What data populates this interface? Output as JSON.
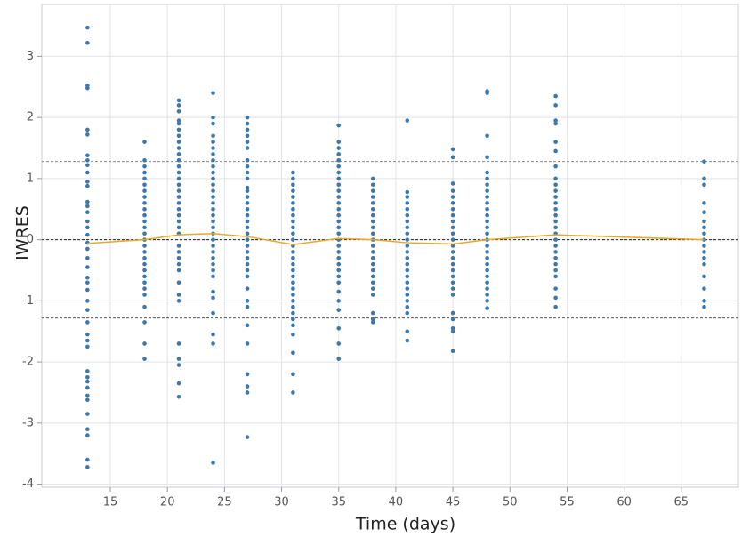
{
  "chart_data": {
    "type": "scatter",
    "xlabel": "Time (days)",
    "ylabel": "IWRES",
    "xlim": [
      9,
      70
    ],
    "ylim": [
      -4.05,
      3.85
    ],
    "xticks": [
      15,
      20,
      25,
      30,
      35,
      40,
      45,
      50,
      55,
      60,
      65
    ],
    "yticks": [
      -4,
      -3,
      -2,
      -1,
      0,
      1,
      2,
      3
    ],
    "grid": true,
    "color": "#3b78ad",
    "groups": [
      {
        "x": 13,
        "values": [
          3.47,
          3.22,
          2.52,
          2.48,
          1.8,
          1.72,
          1.38,
          1.3,
          1.22,
          1.1,
          0.95,
          0.88,
          0.62,
          0.55,
          0.45,
          0.3,
          0.2,
          0.08,
          -0.05,
          -0.15,
          -0.3,
          -0.45,
          -0.62,
          -0.7,
          -0.82,
          -1.0,
          -1.15,
          -1.35,
          -1.55,
          -1.65,
          -1.75,
          -2.15,
          -2.25,
          -2.32,
          -2.42,
          -2.55,
          -2.62,
          -2.85,
          -3.1,
          -3.2,
          -3.6,
          -3.72
        ]
      },
      {
        "x": 18,
        "values": [
          1.6,
          1.3,
          1.2,
          1.1,
          1.0,
          0.9,
          0.8,
          0.7,
          0.6,
          0.5,
          0.4,
          0.3,
          0.2,
          0.1,
          0,
          -0.1,
          -0.2,
          -0.3,
          -0.4,
          -0.5,
          -0.6,
          -0.7,
          -0.8,
          -0.9,
          -1.1,
          -1.35,
          -1.7,
          -1.95
        ]
      },
      {
        "x": 21,
        "values": [
          2.28,
          2.2,
          2.1,
          1.95,
          1.9,
          1.8,
          1.7,
          1.6,
          1.5,
          1.4,
          1.3,
          1.2,
          1.1,
          1.0,
          0.9,
          0.8,
          0.7,
          0.6,
          0.5,
          0.4,
          0.3,
          0.2,
          0.1,
          -0.1,
          -0.2,
          -0.3,
          -0.4,
          -0.5,
          -0.7,
          -0.9,
          -1.0,
          -1.7,
          -1.95,
          -2.05,
          -2.35,
          -2.57
        ]
      },
      {
        "x": 24,
        "values": [
          2.4,
          2.0,
          1.9,
          1.7,
          1.6,
          1.5,
          1.4,
          1.3,
          1.2,
          1.1,
          1.0,
          0.9,
          0.8,
          0.7,
          0.6,
          0.5,
          0.4,
          0.3,
          0.2,
          0.1,
          0,
          -0.1,
          -0.2,
          -0.3,
          -0.4,
          -0.5,
          -0.6,
          -0.85,
          -0.95,
          -1.2,
          -1.55,
          -1.7,
          -3.65
        ]
      },
      {
        "x": 27,
        "values": [
          2.0,
          1.9,
          1.8,
          1.7,
          1.6,
          1.5,
          1.3,
          1.2,
          1.1,
          1.0,
          0.85,
          0.8,
          0.7,
          0.6,
          0.5,
          0.4,
          0.3,
          0.2,
          0.1,
          0,
          -0.1,
          -0.2,
          -0.3,
          -0.4,
          -0.5,
          -0.6,
          -0.8,
          -1.0,
          -1.1,
          -1.4,
          -1.7,
          -2.2,
          -2.4,
          -2.5,
          -3.23
        ]
      },
      {
        "x": 31,
        "values": [
          1.1,
          1.0,
          0.9,
          0.8,
          0.7,
          0.6,
          0.5,
          0.4,
          0.3,
          0.2,
          0.1,
          0,
          -0.1,
          -0.2,
          -0.3,
          -0.4,
          -0.5,
          -0.6,
          -0.7,
          -0.8,
          -0.9,
          -1.0,
          -1.1,
          -1.2,
          -1.3,
          -1.4,
          -1.55,
          -1.85,
          -2.2,
          -2.5
        ]
      },
      {
        "x": 35,
        "values": [
          1.87,
          1.6,
          1.5,
          1.4,
          1.3,
          1.2,
          1.1,
          1.0,
          0.9,
          0.8,
          0.7,
          0.6,
          0.5,
          0.4,
          0.3,
          0.2,
          0.1,
          0,
          -0.1,
          -0.2,
          -0.3,
          -0.4,
          -0.5,
          -0.6,
          -0.7,
          -0.85,
          -1.0,
          -1.15,
          -1.45,
          -1.7,
          -1.95
        ]
      },
      {
        "x": 38,
        "values": [
          1.0,
          0.9,
          0.8,
          0.7,
          0.6,
          0.5,
          0.4,
          0.3,
          0.2,
          0.1,
          0,
          -0.1,
          -0.2,
          -0.3,
          -0.4,
          -0.5,
          -0.6,
          -0.7,
          -0.8,
          -0.9,
          -1.2,
          -1.3,
          -1.35
        ]
      },
      {
        "x": 41,
        "values": [
          1.95,
          0.78,
          0.7,
          0.6,
          0.5,
          0.4,
          0.3,
          0.2,
          0.1,
          0,
          -0.1,
          -0.2,
          -0.3,
          -0.4,
          -0.5,
          -0.6,
          -0.7,
          -0.8,
          -0.9,
          -1.0,
          -1.1,
          -1.2,
          -1.5,
          -1.65
        ]
      },
      {
        "x": 45,
        "values": [
          1.48,
          1.35,
          0.92,
          0.8,
          0.7,
          0.6,
          0.5,
          0.4,
          0.3,
          0.2,
          0.1,
          0,
          -0.1,
          -0.2,
          -0.3,
          -0.4,
          -0.5,
          -0.6,
          -0.7,
          -0.8,
          -0.9,
          -1.2,
          -1.3,
          -1.45,
          -1.5,
          -1.82
        ]
      },
      {
        "x": 48,
        "values": [
          2.43,
          2.4,
          1.7,
          1.35,
          1.1,
          1.0,
          0.9,
          0.8,
          0.7,
          0.6,
          0.5,
          0.4,
          0.3,
          0.2,
          0.1,
          0,
          -0.1,
          -0.2,
          -0.3,
          -0.4,
          -0.5,
          -0.6,
          -0.7,
          -0.8,
          -0.9,
          -1.0,
          -1.12
        ]
      },
      {
        "x": 54,
        "values": [
          2.35,
          2.2,
          1.95,
          1.9,
          1.6,
          1.45,
          1.2,
          1.0,
          0.9,
          0.8,
          0.7,
          0.6,
          0.5,
          0.4,
          0.3,
          0.2,
          0.1,
          0,
          -0.1,
          -0.2,
          -0.3,
          -0.4,
          -0.5,
          -0.6,
          -0.8,
          -0.95,
          -1.1
        ]
      },
      {
        "x": 67,
        "values": [
          1.28,
          1.0,
          0.9,
          0.6,
          0.45,
          0.3,
          0.2,
          0.1,
          0,
          -0.1,
          -0.2,
          -0.3,
          -0.4,
          -0.6,
          -0.8,
          -1.0,
          -1.1
        ]
      }
    ],
    "trend": {
      "color": "#e8a82a",
      "x": [
        13,
        18,
        21,
        24,
        27,
        31,
        35,
        38,
        41,
        45,
        48,
        54,
        67
      ],
      "values": [
        -0.06,
        0,
        0.08,
        0.1,
        0.05,
        -0.08,
        0.02,
        0,
        -0.05,
        -0.07,
        0,
        0.08,
        0
      ]
    },
    "reference_lines": [
      {
        "value": 0,
        "color": "#222222"
      },
      {
        "value": 1.28,
        "color": "#888888"
      },
      {
        "value": -1.28,
        "color": "#555555"
      }
    ]
  }
}
